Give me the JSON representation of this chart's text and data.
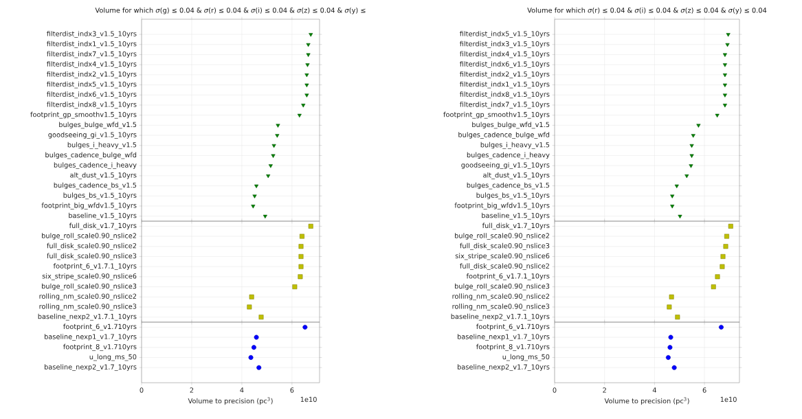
{
  "chart_data": [
    {
      "type": "scatter",
      "orientation": "horizontal",
      "title": "Volume for which *σ*(g) ≤ 0.04 & *σ*(r) ≤ 0.04 & *σ*(i) ≤ 0.04 & *σ*(z) ≤ 0.04 & *σ*(y) ≤",
      "marker": "triangle",
      "color": "#008000",
      "grid": true,
      "tick_labels": "y",
      "xlim": [
        0,
        7.1
      ],
      "xticks": [
        0,
        2,
        4,
        6
      ],
      "categories": [
        "filterdist_indx3_v1.5_10yrs",
        "filterdist_indx1_v1.5_10yrs",
        "filterdist_indx7_v1.5_10yrs",
        "filterdist_indx4_v1.5_10yrs",
        "filterdist_indx2_v1.5_10yrs",
        "filterdist_indx5_v1.5_10yrs",
        "filterdist_indx6_v1.5_10yrs",
        "filterdist_indx8_v1.5_10yrs",
        "footprint_gp_smoothv1.5_10yrs",
        "bulges_bulge_wfd_v1.5",
        "goodseeing_gi_v1.5_10yrs",
        "bulges_i_heavy_v1.5",
        "bulges_cadence_bulge_wfd",
        "bulges_cadence_i_heavy",
        "alt_dust_v1.5_10yrs",
        "bulges_cadence_bs_v1.5",
        "bulges_bs_v1.5_10yrs",
        "footprint_big_wfdv1.5_10yrs",
        "baseline_v1.5_10yrs"
      ],
      "values": [
        6.75,
        6.65,
        6.65,
        6.62,
        6.59,
        6.59,
        6.59,
        6.45,
        6.3,
        5.44,
        5.41,
        5.28,
        5.25,
        5.15,
        5.05,
        4.58,
        4.51,
        4.45,
        4.93
      ]
    },
    {
      "type": "scatter",
      "orientation": "horizontal",
      "marker": "square",
      "color": "#bfbf00",
      "grid": true,
      "tick_labels": "y",
      "xlim": [
        0,
        7.1
      ],
      "xticks": [
        0,
        2,
        4,
        6
      ],
      "categories": [
        "full_disk_v1.7_10yrs",
        "bulge_roll_scale0.90_nslice2",
        "full_disk_scale0.90_nslice2",
        "full_disk_scale0.90_nslice3",
        "footprint_6_v1.7.1_10yrs",
        "six_stripe_scale0.90_nslice6",
        "bulge_roll_scale0.90_nslice3",
        "rolling_nm_scale0.90_nslice2",
        "rolling_nm_scale0.90_nslice3",
        "baseline_nexp2_v1.7.1_10yrs"
      ],
      "values": [
        6.75,
        6.4,
        6.36,
        6.36,
        6.36,
        6.33,
        6.11,
        4.39,
        4.3,
        4.77
      ]
    },
    {
      "type": "scatter",
      "orientation": "horizontal",
      "marker": "circle",
      "color": "#0000ff",
      "grid": true,
      "xlim": [
        0,
        7.1
      ],
      "xticks": [
        0,
        2,
        4,
        6
      ],
      "xlabel": "Volume to precision (pc$^{3}$)",
      "annotations": [
        "1e10"
      ],
      "categories": [
        "footprint_6_v1.710yrs",
        "baseline_nexp1_v1.7_10yrs",
        "footprint_8_v1.710yrs",
        "u_long_ms_50",
        "baseline_nexp2_v1.7_10yrs"
      ],
      "values": [
        6.52,
        4.58,
        4.48,
        4.36,
        4.68
      ]
    },
    {
      "type": "scatter",
      "orientation": "horizontal",
      "title": "Volume for which *σ*(r) ≤ 0.04 & *σ*(i) ≤ 0.04 & *σ*(z) ≤ 0.04 & *σ*(y) ≤ 0.04",
      "marker": "triangle",
      "color": "#008000",
      "grid": true,
      "tick_labels": "y",
      "xlim": [
        0,
        7.4
      ],
      "xticks": [
        0,
        2,
        4,
        6
      ],
      "categories": [
        "filterdist_indx5_v1.5_10yrs",
        "filterdist_indx3_v1.5_10yrs",
        "filterdist_indx4_v1.5_10yrs",
        "filterdist_indx6_v1.5_10yrs",
        "filterdist_indx2_v1.5_10yrs",
        "filterdist_indx1_v1.5_10yrs",
        "filterdist_indx8_v1.5_10yrs",
        "filterdist_indx7_v1.5_10yrs",
        "footprint_gp_smoothv1.5_10yrs",
        "bulges_bulge_wfd_v1.5",
        "bulges_cadence_bulge_wfd",
        "bulges_i_heavy_v1.5",
        "bulges_cadence_i_heavy",
        "goodseeing_gi_v1.5_10yrs",
        "alt_dust_v1.5_10yrs",
        "bulges_cadence_bs_v1.5",
        "bulges_bs_v1.5_10yrs",
        "footprint_big_wfdv1.5_10yrs",
        "baseline_v1.5_10yrs"
      ],
      "values": [
        6.95,
        6.92,
        6.82,
        6.82,
        6.82,
        6.82,
        6.82,
        6.82,
        6.51,
        5.76,
        5.55,
        5.49,
        5.49,
        5.46,
        5.29,
        4.89,
        4.71,
        4.71,
        5.02
      ]
    },
    {
      "type": "scatter",
      "orientation": "horizontal",
      "marker": "square",
      "color": "#bfbf00",
      "grid": true,
      "tick_labels": "y",
      "xlim": [
        0,
        7.4
      ],
      "xticks": [
        0,
        2,
        4,
        6
      ],
      "categories": [
        "full_disk_v1.7_10yrs",
        "bulge_roll_scale0.90_nslice2",
        "full_disk_scale0.90_nslice3",
        "six_stripe_scale0.90_nslice6",
        "full_disk_scale0.90_nslice2",
        "footprint_6_v1.7.1_10yrs",
        "bulge_roll_scale0.90_nslice3",
        "rolling_nm_scale0.90_nslice2",
        "rolling_nm_scale0.90_nslice3",
        "baseline_nexp2_v1.7.1_10yrs"
      ],
      "values": [
        7.05,
        6.89,
        6.85,
        6.74,
        6.71,
        6.52,
        6.36,
        4.68,
        4.59,
        4.92
      ]
    },
    {
      "type": "scatter",
      "orientation": "horizontal",
      "marker": "circle",
      "color": "#0000ff",
      "grid": true,
      "xlim": [
        0,
        7.4
      ],
      "xticks": [
        0,
        2,
        4,
        6
      ],
      "xlabel": "Volume to precision (pc$^{3}$)",
      "annotations": [
        "1e10"
      ],
      "categories": [
        "footprint_6_v1.710yrs",
        "baseline_nexp1_v1.7_10yrs",
        "footprint_8_v1.710yrs",
        "u_long_ms_50",
        "baseline_nexp2_v1.7_10yrs"
      ],
      "values": [
        6.67,
        4.65,
        4.62,
        4.55,
        4.79
      ]
    }
  ]
}
